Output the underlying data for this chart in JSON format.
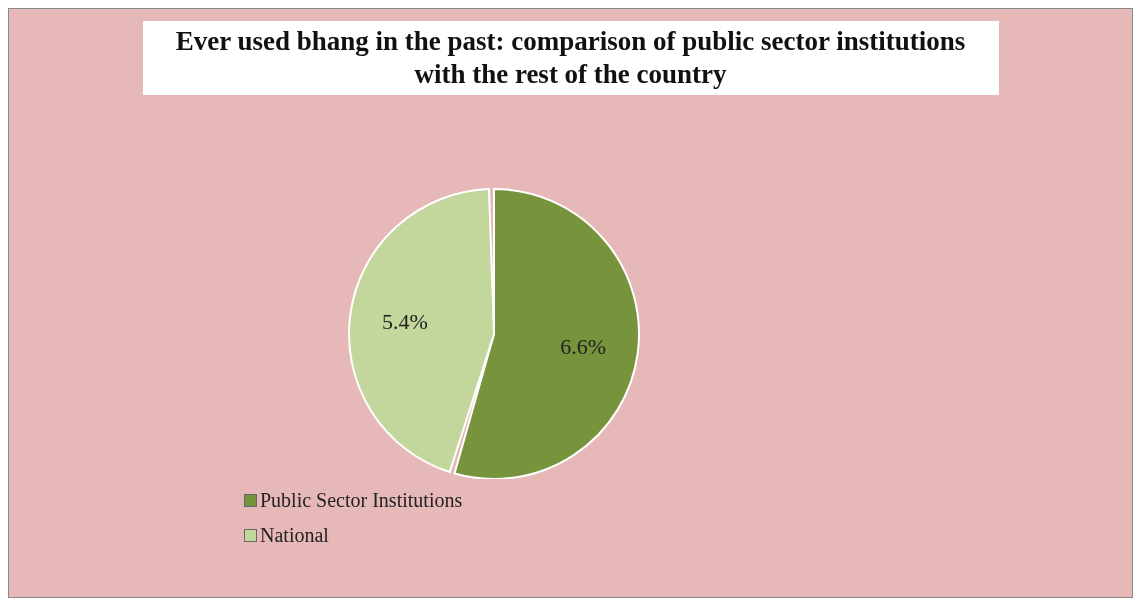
{
  "chart_data": {
    "type": "pie",
    "title": "Ever used bhang in the past: comparison of public sector institutions with the rest of the country",
    "categories": [
      "Public Sector Institutions",
      "National"
    ],
    "values": [
      6.6,
      5.4
    ],
    "colors": [
      "#77933c",
      "#c3d69b"
    ],
    "value_labels": [
      "6.6%",
      "5.4%"
    ],
    "legend": "bottom"
  }
}
